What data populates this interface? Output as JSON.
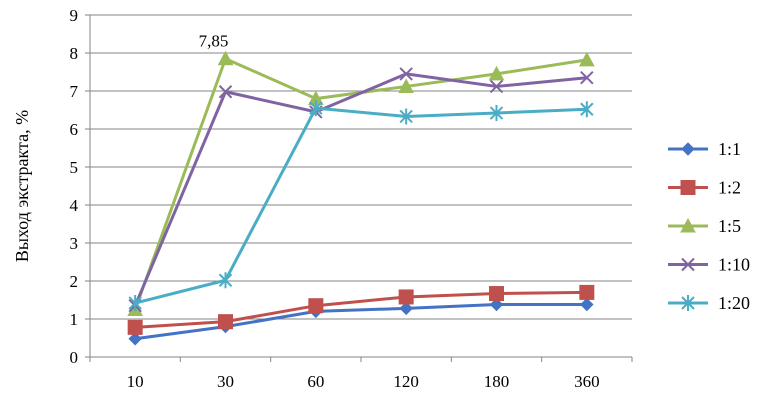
{
  "chart_data": {
    "type": "line",
    "ylabel": "Выход экстракта, %",
    "xlabel": "",
    "ylim": [
      0,
      9
    ],
    "yticks": [
      "0",
      "1",
      "2",
      "3",
      "4",
      "5",
      "6",
      "7",
      "8",
      "9"
    ],
    "categories": [
      "10",
      "30",
      "60",
      "120",
      "180",
      "360"
    ],
    "grid": "horizontal",
    "legend_position": "right",
    "annotation": {
      "text": "7,85",
      "series": "1:5",
      "category": "30"
    },
    "series": [
      {
        "name": "1:1",
        "color": "#4472C4",
        "marker": "diamond",
        "values": [
          0.48,
          0.8,
          1.2,
          1.28,
          1.38,
          1.38
        ]
      },
      {
        "name": "1:2",
        "color": "#C0504D",
        "marker": "square",
        "values": [
          0.78,
          0.93,
          1.35,
          1.58,
          1.67,
          1.7
        ]
      },
      {
        "name": "1:5",
        "color": "#9BBB59",
        "marker": "triangle",
        "values": [
          1.25,
          7.85,
          6.8,
          7.12,
          7.45,
          7.82
        ]
      },
      {
        "name": "1:10",
        "color": "#8064A2",
        "marker": "x",
        "values": [
          1.35,
          6.98,
          6.45,
          7.45,
          7.12,
          7.35
        ]
      },
      {
        "name": "1:20",
        "color": "#4BACC6",
        "marker": "star",
        "values": [
          1.42,
          2.02,
          6.55,
          6.33,
          6.42,
          6.52
        ]
      }
    ]
  }
}
